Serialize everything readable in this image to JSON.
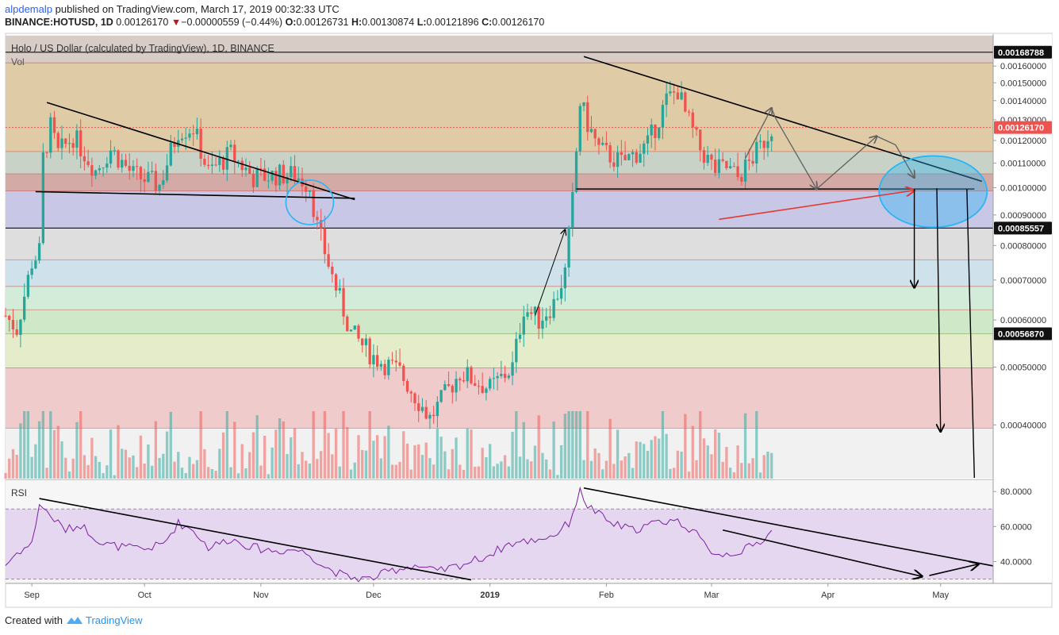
{
  "header": {
    "user": "alpdemalp",
    "published": "published on TradingView.com, March 17, 2019 00:32:33 UTC",
    "symbol": "BINANCE:HOTUSD, 1D",
    "last": "0.00126170",
    "arrow": "▼",
    "change": "−0.00000559 (−0.44%)",
    "o_label": "O:",
    "o": "0.00126731",
    "h_label": "H:",
    "h": "0.00130874",
    "l_label": "L:",
    "l": "0.00121896",
    "c_label": "C:",
    "c": "0.00126170"
  },
  "pane": {
    "title": "Holo / US Dollar (calculated by TradingView), 1D, BINANCE",
    "vol_label": "Vol",
    "rsi_label": "RSI"
  },
  "footer": {
    "created": "Created with",
    "brand": "TradingView"
  },
  "colors": {
    "up": "#26a69a",
    "down": "#ef5350",
    "rsi_line": "#7b1fa2",
    "rsi_band": "#e6d7f1",
    "ellipse": "#29b6f6",
    "red_arrow": "#e53935",
    "trend": "#000000",
    "grey_arrow": "#616161",
    "last_price_tag": "#ef5350"
  },
  "chart_data": [
    {
      "type": "candlestick",
      "title": "Holo / US Dollar (calculated by TradingView), 1D, BINANCE",
      "x": [
        "2018-08-25",
        "2019-05-15"
      ],
      "xlim": [
        "2018-08-25",
        "2019-05-15"
      ],
      "x_ticks": [
        "Sep",
        "Oct",
        "Nov",
        "Dec",
        "2019",
        "Feb",
        "Mar",
        "Apr",
        "May"
      ],
      "x_tick_dates": [
        "2018-09-01",
        "2018-10-01",
        "2018-11-01",
        "2018-12-01",
        "2019-01-01",
        "2019-02-01",
        "2019-03-01",
        "2019-04-01",
        "2019-05-01"
      ],
      "scale": "log",
      "ylim": [
        0.000325,
        0.00181
      ],
      "y_ticks": [
        "0.00160000",
        "0.00150000",
        "0.00140000",
        "0.00130000",
        "0.00120000",
        "0.00110000",
        "0.00100000",
        "0.00090000",
        "0.00080000",
        "0.00070000",
        "0.00060000",
        "0.00050000",
        "0.00040000"
      ],
      "price_labels": [
        {
          "label": "0.00168788",
          "value": 0.00168788,
          "style": "dark"
        },
        {
          "label": "0.00126170",
          "value": 0.0012617,
          "style": "last"
        },
        {
          "label": "0.00085557",
          "value": 0.00085557,
          "style": "dark"
        },
        {
          "label": "0.00056870",
          "value": 0.0005687,
          "style": "dark"
        }
      ],
      "levels": [
        0.00168788,
        0.00162,
        0.00115,
        0.001055,
        0.000988,
        0.00085557,
        0.000757,
        0.000683,
        0.000624,
        0.0005687,
        0.0004985,
        0.000395
      ],
      "bands": [
        {
          "from": 0.00168788,
          "to": 0.0018,
          "color": "#d8ccc6"
        },
        {
          "from": 0.00162,
          "to": 0.00168788,
          "color": "#d8ccc6"
        },
        {
          "from": 0.00115,
          "to": 0.00162,
          "color": "#e0cba7"
        },
        {
          "from": 0.001055,
          "to": 0.00115,
          "color": "#c9d2c6"
        },
        {
          "from": 0.000988,
          "to": 0.001055,
          "color": "#d3aaa6"
        },
        {
          "from": 0.00085557,
          "to": 0.000988,
          "color": "#c8c7e5"
        },
        {
          "from": 0.000757,
          "to": 0.00085557,
          "color": "#dedede"
        },
        {
          "from": 0.000683,
          "to": 0.000757,
          "color": "#cfe2ec"
        },
        {
          "from": 0.000624,
          "to": 0.000683,
          "color": "#d2ecd9"
        },
        {
          "from": 0.0005687,
          "to": 0.000624,
          "color": "#cfe9c8"
        },
        {
          "from": 0.0004985,
          "to": 0.0005687,
          "color": "#e4ecca"
        },
        {
          "from": 0.000395,
          "to": 0.0004985,
          "color": "#efcbcb"
        },
        {
          "from": 0.0003,
          "to": 0.000395,
          "color": "#f1f1f1"
        }
      ],
      "close_path": [
        [
          "2018-08-25",
          0.00061
        ],
        [
          "2018-08-28",
          0.00058
        ],
        [
          "2018-09-01",
          0.00075
        ],
        [
          "2018-09-03",
          0.00078
        ],
        [
          "2018-09-04",
          0.00112
        ],
        [
          "2018-09-06",
          0.00126
        ],
        [
          "2018-09-08",
          0.00114
        ],
        [
          "2018-09-12",
          0.00122
        ],
        [
          "2018-09-18",
          0.00107
        ],
        [
          "2018-09-22",
          0.00116
        ],
        [
          "2018-09-28",
          0.00105
        ],
        [
          "2018-10-05",
          0.00101
        ],
        [
          "2018-10-10",
          0.00125
        ],
        [
          "2018-10-14",
          0.00126
        ],
        [
          "2018-10-18",
          0.00106
        ],
        [
          "2018-10-24",
          0.00114
        ],
        [
          "2018-10-30",
          0.00104
        ],
        [
          "2018-11-05",
          0.00105
        ],
        [
          "2018-11-10",
          0.00105
        ],
        [
          "2018-11-14",
          0.00101
        ],
        [
          "2018-11-16",
          0.00086
        ],
        [
          "2018-11-20",
          0.00071
        ],
        [
          "2018-11-25",
          0.00057
        ],
        [
          "2018-12-01",
          0.00052
        ],
        [
          "2018-12-08",
          0.00049
        ],
        [
          "2018-12-16",
          0.00041
        ],
        [
          "2018-12-24",
          0.00049
        ],
        [
          "2019-01-01",
          0.00046
        ],
        [
          "2019-01-07",
          0.0005
        ],
        [
          "2019-01-10",
          0.00063
        ],
        [
          "2019-01-14",
          0.0006
        ],
        [
          "2019-01-18",
          0.00064
        ],
        [
          "2019-01-21",
          0.00072
        ],
        [
          "2019-01-23",
          0.00095
        ],
        [
          "2019-01-25",
          0.00139
        ],
        [
          "2019-01-27",
          0.00128
        ],
        [
          "2019-01-30",
          0.00116
        ],
        [
          "2019-02-05",
          0.0011
        ],
        [
          "2019-02-12",
          0.00118
        ],
        [
          "2019-02-17",
          0.0014
        ],
        [
          "2019-02-20",
          0.00146
        ],
        [
          "2019-02-22",
          0.00133
        ],
        [
          "2019-02-26",
          0.00116
        ],
        [
          "2019-03-02",
          0.00107
        ],
        [
          "2019-03-05",
          0.00108
        ],
        [
          "2019-03-08",
          0.00104
        ],
        [
          "2019-03-11",
          0.0011
        ],
        [
          "2019-03-14",
          0.00117
        ],
        [
          "2019-03-17",
          0.00126
        ]
      ],
      "series": [
        {
          "name": "Vol",
          "type": "bar"
        }
      ]
    },
    {
      "type": "line",
      "title": "RSI",
      "ylim": [
        27.5,
        86
      ],
      "y_ticks": [
        "80.0000",
        "60.0000",
        "40.0000"
      ],
      "band": [
        30,
        70
      ],
      "path": [
        [
          "2018-08-25",
          38
        ],
        [
          "2018-08-28",
          45
        ],
        [
          "2018-09-01",
          50
        ],
        [
          "2018-09-03",
          73
        ],
        [
          "2018-09-06",
          66
        ],
        [
          "2018-09-10",
          58
        ],
        [
          "2018-09-14",
          61
        ],
        [
          "2018-09-20",
          50
        ],
        [
          "2018-09-26",
          48
        ],
        [
          "2018-10-01",
          47
        ],
        [
          "2018-10-06",
          50
        ],
        [
          "2018-10-10",
          62
        ],
        [
          "2018-10-14",
          58
        ],
        [
          "2018-10-18",
          48
        ],
        [
          "2018-10-24",
          53
        ],
        [
          "2018-10-30",
          48
        ],
        [
          "2018-11-05",
          46
        ],
        [
          "2018-11-10",
          47
        ],
        [
          "2018-11-14",
          44
        ],
        [
          "2018-11-18",
          37
        ],
        [
          "2018-11-24",
          31
        ],
        [
          "2018-11-30",
          30
        ],
        [
          "2018-12-06",
          35
        ],
        [
          "2018-12-12",
          38
        ],
        [
          "2018-12-18",
          34
        ],
        [
          "2018-12-24",
          38
        ],
        [
          "2018-12-31",
          43
        ],
        [
          "2019-01-06",
          50
        ],
        [
          "2019-01-12",
          52
        ],
        [
          "2019-01-18",
          55
        ],
        [
          "2019-01-22",
          62
        ],
        [
          "2019-01-25",
          80
        ],
        [
          "2019-01-27",
          72
        ],
        [
          "2019-02-02",
          62
        ],
        [
          "2019-02-08",
          58
        ],
        [
          "2019-02-14",
          62
        ],
        [
          "2019-02-19",
          64
        ],
        [
          "2019-02-24",
          58
        ],
        [
          "2019-02-28",
          47
        ],
        [
          "2019-03-04",
          44
        ],
        [
          "2019-03-09",
          46
        ],
        [
          "2019-03-13",
          50
        ],
        [
          "2019-03-17",
          57
        ]
      ]
    }
  ]
}
